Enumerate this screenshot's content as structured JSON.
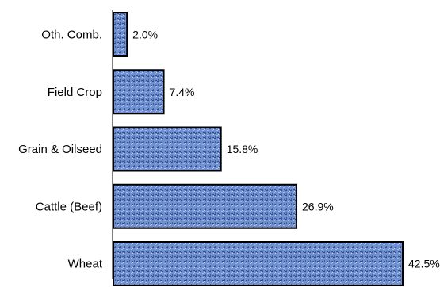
{
  "chart_data": {
    "type": "bar",
    "orientation": "horizontal",
    "categories": [
      "Oth. Comb.",
      "Field Crop",
      "Grain & Oilseed",
      "Cattle (Beef)",
      "Wheat"
    ],
    "values": [
      2.0,
      7.4,
      15.8,
      26.9,
      42.5
    ],
    "value_labels": [
      "2.0%",
      "7.4%",
      "15.8%",
      "26.9%",
      "42.5%"
    ],
    "value_unit": "%",
    "xlim": [
      0,
      42.5
    ],
    "grid": false,
    "legend": "none",
    "bar_color": "#6f8fcf",
    "bar_texture": "#2f4f8f",
    "bar_edge": "#000000"
  }
}
